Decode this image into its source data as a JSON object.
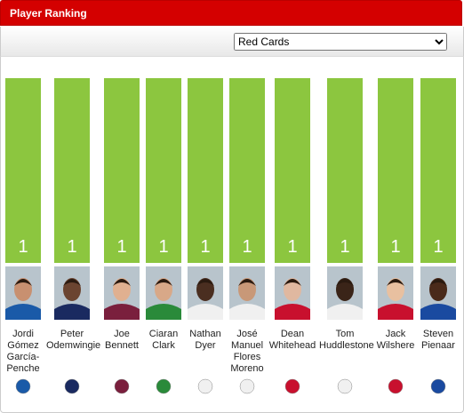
{
  "chart_data": {
    "type": "bar",
    "title": "Player Ranking",
    "metric": "Red Cards",
    "categories": [
      "Jordi Gómez García-Penche",
      "Peter Odemwingie",
      "Joe Bennett",
      "Ciaran Clark",
      "Nathan Dyer",
      "José Manuel Flores Moreno",
      "Dean Whitehead",
      "Tom Huddlestone",
      "Jack Wilshere",
      "Steven Pienaar"
    ],
    "values": [
      1,
      1,
      1,
      1,
      1,
      1,
      1,
      1,
      1,
      1
    ],
    "color": "#8cc63f"
  }
}
